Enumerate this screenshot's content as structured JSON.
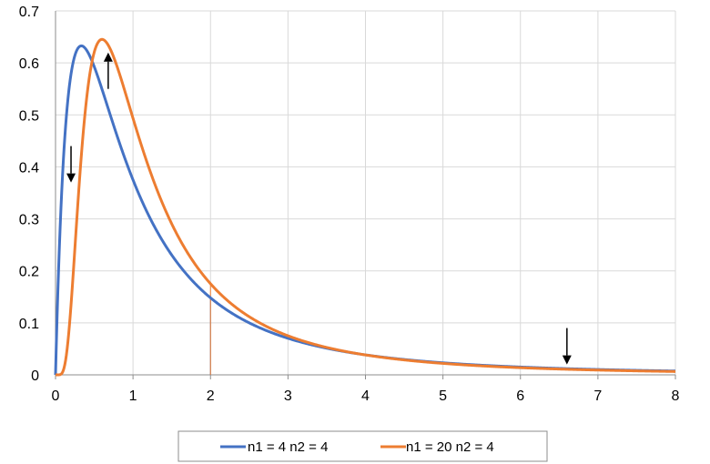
{
  "chart_data": {
    "type": "line",
    "title": "",
    "xlabel": "",
    "ylabel": "",
    "xlim": [
      0,
      8
    ],
    "ylim": [
      0,
      0.7
    ],
    "xticks": [
      0,
      1,
      2,
      3,
      4,
      5,
      6,
      7,
      8
    ],
    "xtick_labels": [
      "0",
      "1",
      "2",
      "3",
      "4",
      "5",
      "6",
      "7",
      "8"
    ],
    "yticks": [
      0,
      0.1,
      0.2,
      0.3,
      0.4,
      0.5,
      0.6,
      0.7
    ],
    "ytick_labels": [
      "0",
      "0.1",
      "0.2",
      "0.3",
      "0.4",
      "0.5",
      "0.6",
      "0.7"
    ],
    "grid": true,
    "legend_position": "bottom",
    "series": [
      {
        "name": "n1 = 4  n2 = 4",
        "color": "#4472C4",
        "distribution": "F",
        "df1": 4,
        "df2": 4,
        "points": [
          [
            0,
            0
          ],
          [
            0.1,
            0.4963
          ],
          [
            0.2,
            0.6366
          ],
          [
            0.33,
            0.6292
          ],
          [
            0.5,
            0.5926
          ],
          [
            0.75,
            0.4898
          ],
          [
            1,
            0.375
          ],
          [
            1.5,
            0.2304
          ],
          [
            2,
            0.1481
          ],
          [
            3,
            0.0703
          ],
          [
            4,
            0.0384
          ],
          [
            5,
            0.0231
          ],
          [
            6,
            0.015
          ],
          [
            7,
            0.0102
          ],
          [
            8,
            0.0073
          ]
        ]
      },
      {
        "name": "n1 = 20  n2 = 4",
        "color": "#ED7D31",
        "distribution": "F",
        "df1": 20,
        "df2": 4,
        "points": [
          [
            0,
            0
          ],
          [
            0.1,
            0.0
          ],
          [
            0.2,
            0.19
          ],
          [
            0.4,
            0.56
          ],
          [
            0.6,
            0.645
          ],
          [
            0.8,
            0.615
          ],
          [
            1,
            0.52
          ],
          [
            1.5,
            0.3
          ],
          [
            2,
            0.178
          ],
          [
            3,
            0.076
          ],
          [
            4,
            0.039
          ],
          [
            5,
            0.023
          ],
          [
            6,
            0.015
          ],
          [
            7,
            0.0105
          ],
          [
            8,
            0.0075
          ]
        ]
      }
    ],
    "vertical_markers": [
      {
        "x": 2,
        "y": 0.148,
        "color": "#4472C4"
      },
      {
        "x": 2,
        "y": 0.178,
        "color": "#ED7D31"
      }
    ],
    "arrows": [
      {
        "x": 0.2,
        "y_from": 0.44,
        "y_to": 0.37,
        "direction": "down",
        "color": "#000000"
      },
      {
        "x": 0.68,
        "y_from": 0.55,
        "y_to": 0.62,
        "direction": "up",
        "color": "#000000"
      },
      {
        "x": 6.6,
        "y_from": 0.09,
        "y_to": 0.02,
        "direction": "down",
        "color": "#000000"
      }
    ]
  }
}
